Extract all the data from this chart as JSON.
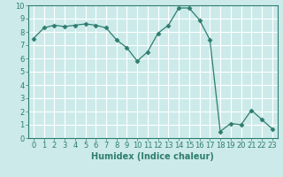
{
  "x": [
    0,
    1,
    2,
    3,
    4,
    5,
    6,
    7,
    8,
    9,
    10,
    11,
    12,
    13,
    14,
    15,
    16,
    17,
    18,
    19,
    20,
    21,
    22,
    23
  ],
  "y": [
    7.5,
    8.3,
    8.5,
    8.4,
    8.5,
    8.6,
    8.5,
    8.3,
    7.4,
    6.8,
    5.8,
    6.5,
    7.9,
    8.5,
    9.8,
    9.8,
    8.9,
    7.4,
    0.5,
    1.1,
    1.0,
    2.1,
    1.4,
    0.7
  ],
  "line_color": "#2e7d6e",
  "marker": "D",
  "marker_size": 2.5,
  "bg_color": "#cceaea",
  "grid_color": "#ffffff",
  "grid_minor_color": "#ddf0f0",
  "xlabel": "Humidex (Indice chaleur)",
  "xlim": [
    -0.5,
    23.5
  ],
  "ylim": [
    0,
    10
  ],
  "xticks": [
    0,
    1,
    2,
    3,
    4,
    5,
    6,
    7,
    8,
    9,
    10,
    11,
    12,
    13,
    14,
    15,
    16,
    17,
    18,
    19,
    20,
    21,
    22,
    23
  ],
  "yticks": [
    0,
    1,
    2,
    3,
    4,
    5,
    6,
    7,
    8,
    9,
    10
  ],
  "tick_color": "#2e7d6e",
  "label_color": "#2e7d6e",
  "font_size": 6,
  "xlabel_fontsize": 7
}
